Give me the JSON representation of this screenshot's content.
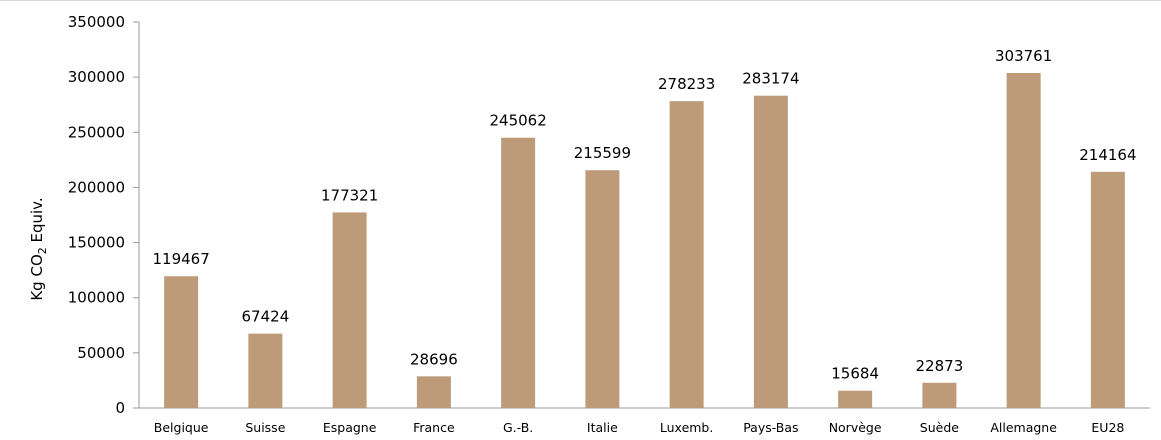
{
  "chart_data": {
    "type": "bar",
    "categories": [
      "Belgique",
      "Suisse",
      "Espagne",
      "France",
      "G.-B.",
      "Italie",
      "Luxemb.",
      "Pays-Bas",
      "Norvège",
      "Suède",
      "Allemagne",
      "EU28"
    ],
    "values": [
      119467,
      67424,
      177321,
      28696,
      245062,
      215599,
      278233,
      283174,
      15684,
      22873,
      303761,
      214164
    ],
    "title": "",
    "xlabel": "",
    "ylabel_parts": {
      "main": "Kg CO",
      "subscript": "2",
      "suffix": " Equiv."
    },
    "ylim": [
      0,
      350000
    ],
    "yticks": [
      0,
      50000,
      100000,
      150000,
      200000,
      250000,
      300000,
      350000
    ],
    "grid": false,
    "legend": "none",
    "data_labels": true,
    "colors": {
      "bar": "#BD9A78",
      "axis": "#9a9a9a",
      "text": "#000000"
    }
  }
}
